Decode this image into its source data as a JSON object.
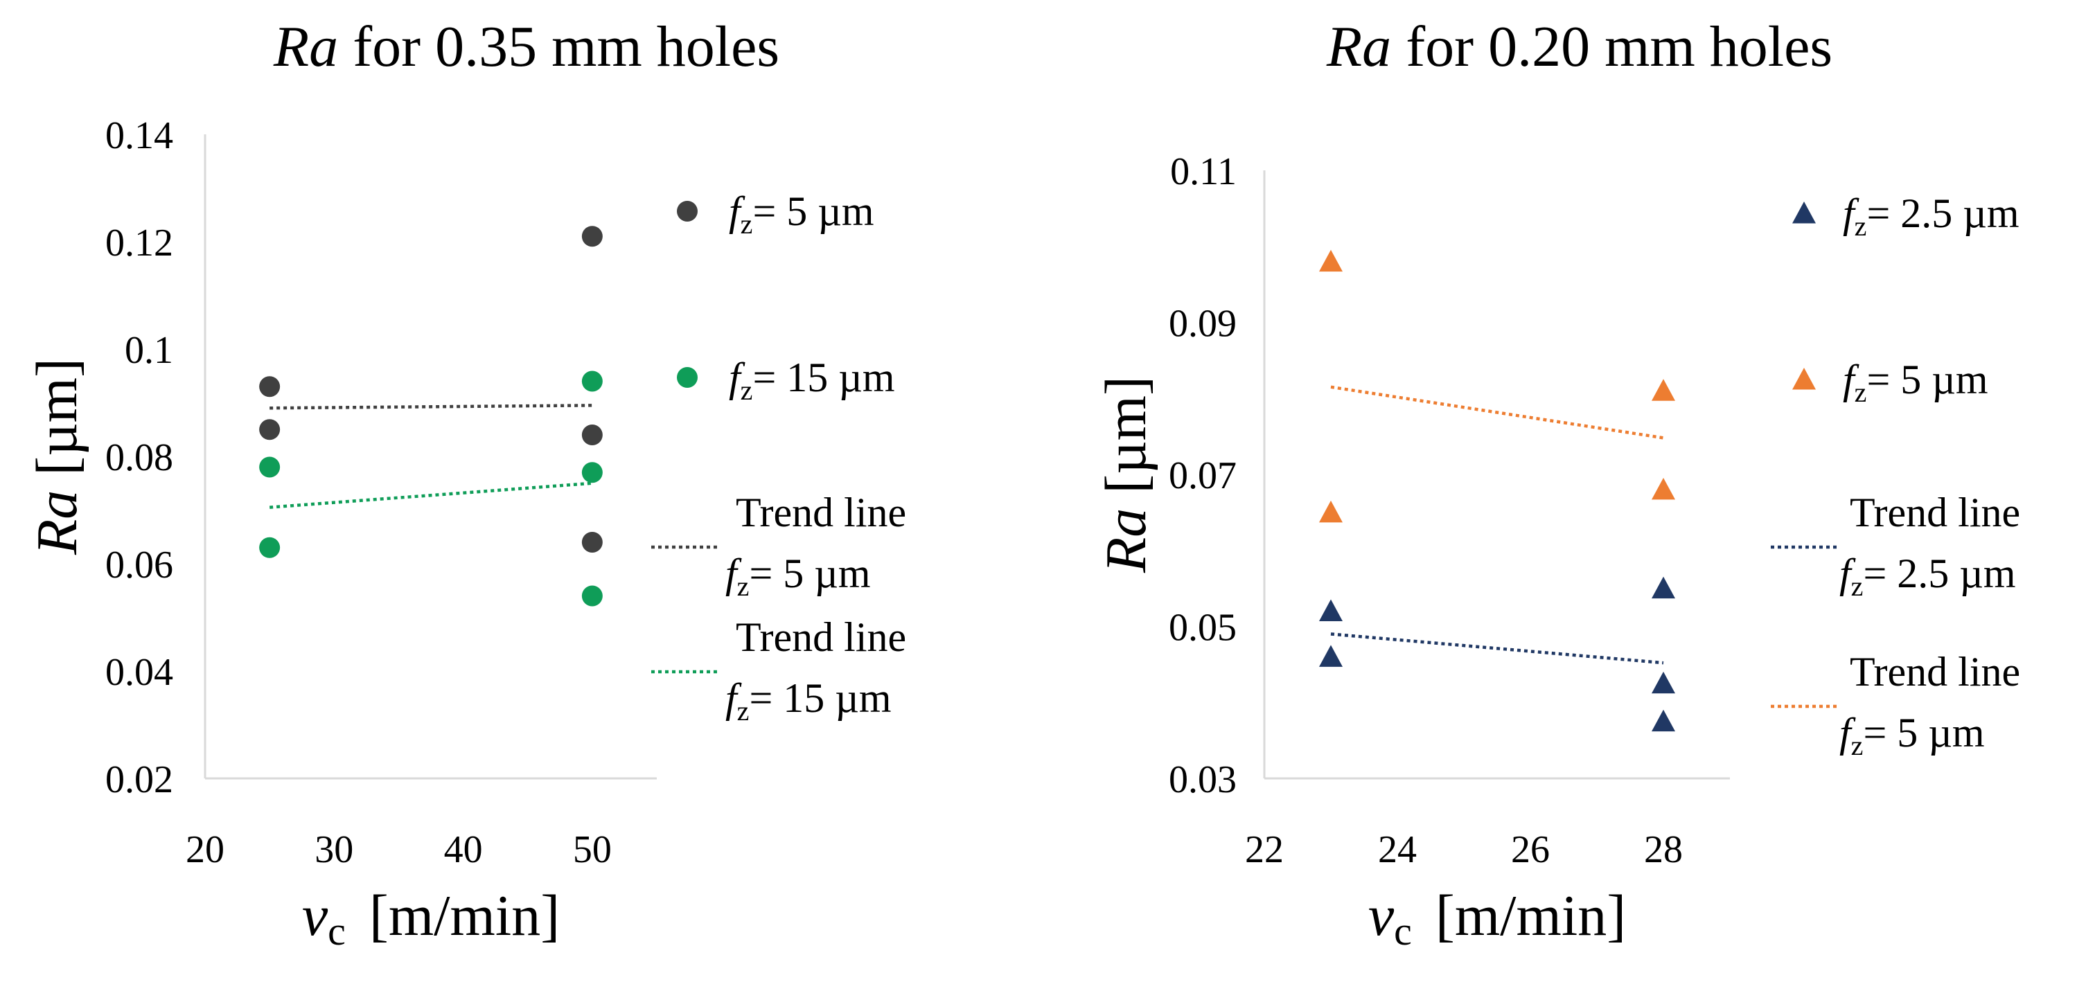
{
  "chart_data": [
    {
      "type": "scatter",
      "title_italic": "Ra",
      "title_rest": " for 0.35 mm holes",
      "xlabel": {
        "main": "v",
        "sub": "c",
        "unit": "[m/min]"
      },
      "ylabel": {
        "main": "Ra",
        "unit": "[µm]"
      },
      "xlim": [
        20,
        55
      ],
      "ylim": [
        0.02,
        0.14
      ],
      "x_ticks": [
        20,
        30,
        40,
        50
      ],
      "x_tick_labels": [
        "20",
        "30",
        "40",
        "50"
      ],
      "y_ticks": [
        0.02,
        0.04,
        0.06,
        0.08,
        0.1,
        0.12,
        0.14
      ],
      "y_tick_labels": [
        "0.02",
        "0.04",
        "0.06",
        "0.08",
        "0.1",
        "0.12",
        "0.14"
      ],
      "grid": false,
      "legend_position": "right",
      "series": [
        {
          "label": "= 5 µm",
          "fz_sub": "z",
          "marker": "circle",
          "color": "#404040",
          "x": [
            25,
            25,
            50,
            50,
            50
          ],
          "y": [
            0.093,
            0.085,
            0.121,
            0.084,
            0.064
          ]
        },
        {
          "label": "= 15 µm",
          "fz_sub": "z",
          "marker": "circle",
          "color": "#0f9d58",
          "x": [
            25,
            25,
            50,
            50,
            50
          ],
          "y": [
            0.078,
            0.063,
            0.094,
            0.077,
            0.054
          ]
        }
      ],
      "trendlines": [
        {
          "label": "Trend line",
          "label2": "= 5 µm",
          "color": "#404040",
          "x": [
            25,
            50
          ],
          "y": [
            0.089,
            0.0895
          ]
        },
        {
          "label": "Trend line",
          "label2": "= 15 µm",
          "color": "#0f9d58",
          "x": [
            25,
            50
          ],
          "y": [
            0.0705,
            0.075
          ]
        }
      ]
    },
    {
      "type": "scatter",
      "title_italic": "Ra",
      "title_rest": " for 0.20 mm holes",
      "xlabel": {
        "main": "v",
        "sub": "c",
        "unit": "[m/min]"
      },
      "ylabel": {
        "main": "Ra",
        "unit": "[µm]"
      },
      "xlim": [
        22,
        29
      ],
      "ylim": [
        0.03,
        0.11
      ],
      "x_ticks": [
        22,
        24,
        26,
        28
      ],
      "x_tick_labels": [
        "22",
        "24",
        "26",
        "28"
      ],
      "y_ticks": [
        0.03,
        0.05,
        0.07,
        0.09,
        0.11
      ],
      "y_tick_labels": [
        "0.03",
        "0.05",
        "0.07",
        "0.09",
        "0.11"
      ],
      "grid": false,
      "legend_position": "right",
      "series": [
        {
          "label": "= 2.5 µm",
          "fz_sub": "z",
          "marker": "triangle",
          "color": "#203864",
          "x": [
            23,
            23,
            28,
            28,
            28
          ],
          "y": [
            0.052,
            0.046,
            0.055,
            0.0425,
            0.0375
          ]
        },
        {
          "label": "= 5 µm",
          "fz_sub": "z",
          "marker": "triangle",
          "color": "#ed7d31",
          "x": [
            23,
            23,
            28,
            28
          ],
          "y": [
            0.098,
            0.065,
            0.081,
            0.068
          ]
        }
      ],
      "trendlines": [
        {
          "label": "Trend line",
          "label2": "= 2.5 µm",
          "color": "#203864",
          "x": [
            23,
            28
          ],
          "y": [
            0.049,
            0.0452
          ]
        },
        {
          "label": "Trend line",
          "label2": "= 5 µm",
          "color": "#ed7d31",
          "x": [
            23,
            28
          ],
          "y": [
            0.0815,
            0.0748
          ]
        }
      ]
    }
  ]
}
